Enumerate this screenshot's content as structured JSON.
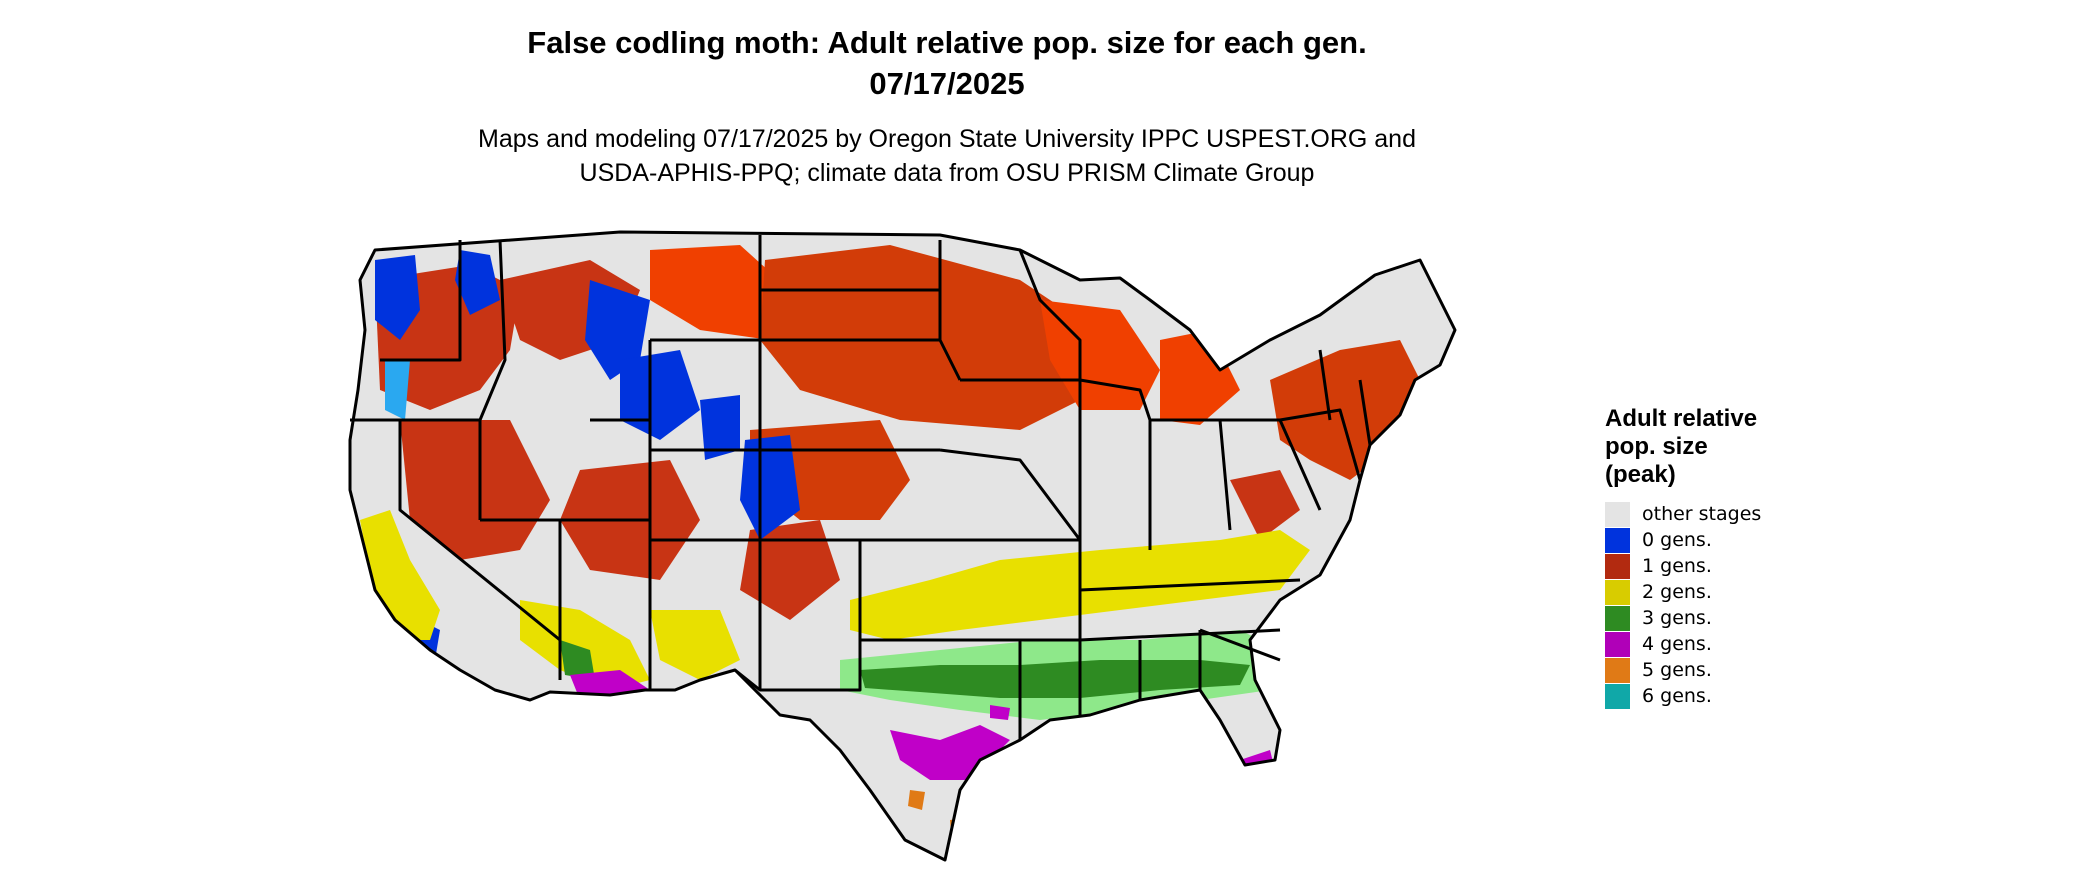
{
  "title_line1": "False codling moth: Adult relative pop. size for each gen.",
  "title_line2": "07/17/2025",
  "subtitle_line1": "Maps and modeling 07/17/2025 by Oregon State University IPPC USPEST.ORG and",
  "subtitle_line2": "USDA-APHIS-PPQ; climate data from OSU PRISM Climate Group",
  "legend": {
    "title_line1": "Adult relative",
    "title_line2": "pop. size",
    "title_line3": "(peak)",
    "items": [
      {
        "label": "other stages",
        "color": "#e4e4e4"
      },
      {
        "label": "0 gens.",
        "color": "#0033dd"
      },
      {
        "label": "1 gens.",
        "color": "#b22a10"
      },
      {
        "label": "2 gens.",
        "color": "#d8cc00"
      },
      {
        "label": "3 gens.",
        "color": "#2e8b22"
      },
      {
        "label": "4 gens.",
        "color": "#b000b8"
      },
      {
        "label": "5 gens.",
        "color": "#e07a16"
      },
      {
        "label": "6 gens.",
        "color": "#10a8a8"
      }
    ]
  },
  "map_colors": {
    "base": "#e4e4e4",
    "gen0": "#0033dd",
    "gen0_light": "#2aa8f0",
    "gen1": "#b22a10",
    "gen1_bright": "#f04000",
    "gen2": "#e8e000",
    "gen3": "#2e8b22",
    "gen3_light": "#8ee88a",
    "gen4": "#c000c8",
    "gen5": "#e07a16",
    "border": "#000000"
  }
}
